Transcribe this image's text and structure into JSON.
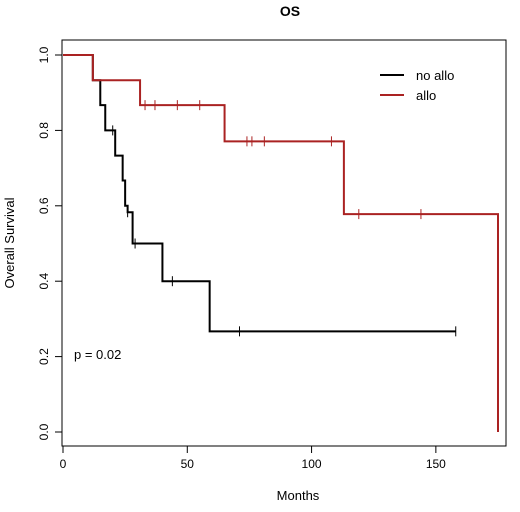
{
  "chart_data": {
    "type": "line",
    "title": "OS",
    "xlabel": "Months",
    "ylabel": "Overall Survival",
    "xlim": [
      0,
      175
    ],
    "ylim": [
      0,
      1
    ],
    "xticks": [
      0,
      50,
      100,
      150
    ],
    "yticks": [
      "0.0",
      "0.2",
      "0.4",
      "0.6",
      "0.8",
      "1.0"
    ],
    "grid": false,
    "legend_position": "top-right",
    "annotation": "p = 0.02",
    "series": [
      {
        "name": "no allo",
        "color": "#000000",
        "x": [
          0,
          12,
          15,
          17,
          21,
          24,
          25,
          26,
          28,
          40,
          59,
          158
        ],
        "y": [
          1.0,
          0.933,
          0.867,
          0.8,
          0.733,
          0.667,
          0.6,
          0.583,
          0.5,
          0.4,
          0.267,
          0.267
        ],
        "censor_x": [
          20,
          26,
          29,
          44,
          71,
          158
        ],
        "censor_y": [
          0.8,
          0.583,
          0.5,
          0.4,
          0.267,
          0.267
        ]
      },
      {
        "name": "allo",
        "color": "#aa2222",
        "x": [
          0,
          12,
          31,
          65,
          113,
          175
        ],
        "y": [
          1.0,
          0.933,
          0.867,
          0.771,
          0.578,
          0.0
        ],
        "censor_x": [
          33,
          37,
          46,
          55,
          74,
          76,
          81,
          108,
          119,
          144
        ],
        "censor_y": [
          0.867,
          0.867,
          0.867,
          0.867,
          0.771,
          0.771,
          0.771,
          0.771,
          0.578,
          0.578
        ]
      }
    ]
  }
}
